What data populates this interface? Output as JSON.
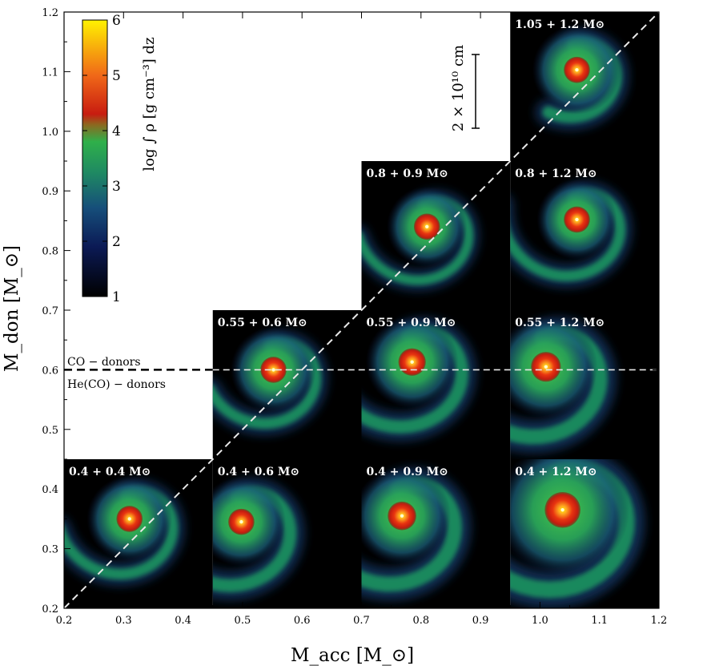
{
  "chart_data": {
    "type": "scatter",
    "xlabel": "M_acc [M_⊙]",
    "ylabel": "M_don [M_⊙]",
    "xlim": [
      0.2,
      1.2
    ],
    "ylim": [
      0.2,
      1.2
    ],
    "x_ticks": [
      0.2,
      0.3,
      0.4,
      0.5,
      0.6,
      0.7,
      0.8,
      0.9,
      1.0,
      1.1,
      1.2
    ],
    "y_ticks": [
      0.2,
      0.3,
      0.4,
      0.5,
      0.6,
      0.7,
      0.8,
      0.9,
      1.0,
      1.1,
      1.2
    ],
    "x_tick_labels": [
      "0.2",
      "0.3",
      "0.4",
      "0.5",
      "0.6",
      "0.7",
      "0.8",
      "0.9",
      "1.0",
      "1.1",
      "1.2"
    ],
    "y_tick_labels": [
      "0.2",
      "0.3",
      "0.4",
      "0.5",
      "0.6",
      "0.7",
      "0.8",
      "0.9",
      "1.0",
      "1.1",
      "1.2"
    ],
    "colorbar": {
      "label": "log ∫ ρ [g cm⁻³] dz",
      "ticks": [
        1,
        2,
        3,
        4,
        5,
        6
      ],
      "range": [
        1,
        6
      ],
      "colors": [
        "#000000",
        "#0b1a55",
        "#1f7a6a",
        "#2fb04a",
        "#d42010",
        "#f07818",
        "#fff000"
      ]
    },
    "reference_lines": [
      {
        "kind": "diagonal",
        "from": [
          0.2,
          0.2
        ],
        "to": [
          1.2,
          1.2
        ],
        "style": "dashed",
        "color": "#e8e8e8"
      },
      {
        "kind": "horizontal",
        "y": 0.6,
        "style": "dashed",
        "color": "#000000",
        "labels_above": "CO − donors",
        "labels_below": "He(CO) − donors"
      }
    ],
    "scale_bar": {
      "label": "2 × 10¹⁰ cm"
    },
    "panels": [
      {
        "label": "0.4 + 0.4 M⊙",
        "acc": 0.4,
        "don": 0.4,
        "acc_range": [
          0.2,
          0.45
        ],
        "don_range": [
          0.2,
          0.45
        ],
        "core": [
          0.31,
          0.35
        ],
        "rc": 0.022,
        "rh": 0.048,
        "arm": 0.55,
        "armw": 0.018
      },
      {
        "label": "0.4 + 0.6 M⊙",
        "acc": 0.6,
        "don": 0.4,
        "acc_range": [
          0.45,
          0.7
        ],
        "don_range": [
          0.2,
          0.45
        ],
        "core": [
          0.498,
          0.345
        ],
        "rc": 0.022,
        "rh": 0.05,
        "arm": 0.85,
        "armw": 0.022
      },
      {
        "label": "0.4 + 0.9 M⊙",
        "acc": 0.9,
        "don": 0.4,
        "acc_range": [
          0.7,
          0.95
        ],
        "don_range": [
          0.2,
          0.45
        ],
        "core": [
          0.768,
          0.355
        ],
        "rc": 0.024,
        "rh": 0.055,
        "arm": 0.95,
        "armw": 0.025
      },
      {
        "label": "0.4 + 1.2 M⊙",
        "acc": 1.2,
        "don": 0.4,
        "acc_range": [
          0.95,
          1.2
        ],
        "don_range": [
          0.2,
          0.45
        ],
        "core": [
          1.038,
          0.365
        ],
        "rc": 0.03,
        "rh": 0.075,
        "arm": 1.0,
        "armw": 0.028
      },
      {
        "label": "0.55 + 0.6 M⊙",
        "acc": 0.6,
        "don": 0.55,
        "acc_range": [
          0.45,
          0.7
        ],
        "don_range": [
          0.45,
          0.7
        ],
        "core": [
          0.552,
          0.6
        ],
        "rc": 0.022,
        "rh": 0.048,
        "arm": 0.5,
        "armw": 0.018
      },
      {
        "label": "0.55 + 0.9 M⊙",
        "acc": 0.9,
        "don": 0.55,
        "acc_range": [
          0.7,
          0.95
        ],
        "don_range": [
          0.45,
          0.7
        ],
        "core": [
          0.785,
          0.613
        ],
        "rc": 0.023,
        "rh": 0.052,
        "arm": 0.85,
        "armw": 0.022
      },
      {
        "label": "0.55 + 1.2 M⊙",
        "acc": 1.2,
        "don": 0.55,
        "acc_range": [
          0.95,
          1.2
        ],
        "don_range": [
          0.45,
          0.7
        ],
        "core": [
          1.01,
          0.605
        ],
        "rc": 0.025,
        "rh": 0.058,
        "arm": 0.95,
        "armw": 0.025
      },
      {
        "label": "0.8 + 0.9 M⊙",
        "acc": 0.9,
        "don": 0.8,
        "acc_range": [
          0.7,
          0.95
        ],
        "don_range": [
          0.7,
          0.95
        ],
        "core": [
          0.81,
          0.84
        ],
        "rc": 0.022,
        "rh": 0.045,
        "arm": 0.55,
        "armw": 0.016
      },
      {
        "label": "0.8 + 1.2 M⊙",
        "acc": 1.2,
        "don": 0.8,
        "acc_range": [
          0.95,
          1.2
        ],
        "don_range": [
          0.7,
          0.95
        ],
        "core": [
          1.062,
          0.852
        ],
        "rc": 0.022,
        "rh": 0.045,
        "arm": 0.65,
        "armw": 0.018
      },
      {
        "label": "1.05 + 1.2 M⊙",
        "acc": 1.2,
        "don": 1.05,
        "acc_range": [
          0.95,
          1.2
        ],
        "don_range": [
          0.95,
          1.2
        ],
        "core": [
          1.062,
          1.103
        ],
        "rc": 0.022,
        "rh": 0.05,
        "arm": 0.3,
        "armw": 0.02
      }
    ]
  }
}
